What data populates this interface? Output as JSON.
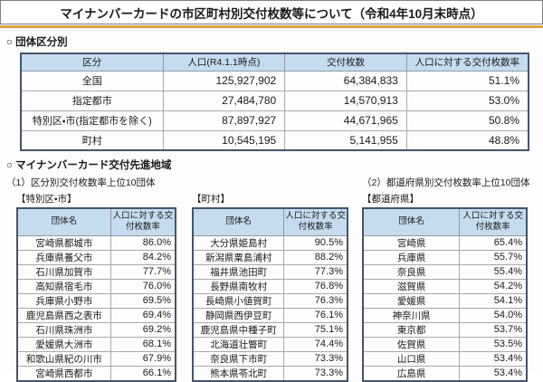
{
  "title": "マイナンバーカードの市区町村別交付枚数等について（令和4年10月末時点）",
  "colors": {
    "accent_line": "#d8a348",
    "table_header_bg": "#c5dcf0",
    "table_outer_border": "#44546a",
    "cell_border": "#a9a9a9"
  },
  "section1": {
    "heading": "○ 団体区分別",
    "table": {
      "headers": [
        "区分",
        "人口(R4.1.1時点)",
        "交付枚数",
        "人口に対する交付枚数率"
      ],
      "rows": [
        [
          "全国",
          "125,927,902",
          "64,384,833",
          "51.1%"
        ],
        [
          "指定都市",
          "27,484,780",
          "14,570,913",
          "53.0%"
        ],
        [
          "特別区・市(指定都市を除く)",
          "87,897,927",
          "44,671,965",
          "50.8%"
        ],
        [
          "町村",
          "10,545,195",
          "5,141,955",
          "48.8%"
        ]
      ]
    }
  },
  "section2": {
    "heading": "○ マイナンバーカード交付先進地域",
    "subheading_left": "（1）区分別交付枚数率上位10団体",
    "subheading_right": "（2）都道府県別交付枚数率上位10団体",
    "tables": [
      {
        "label": "【特別区・市】",
        "headers": [
          "団体名",
          "人口に対する交付枚数率"
        ],
        "rows": [
          [
            "宮崎県都城市",
            "86.0%"
          ],
          [
            "兵庫県養父市",
            "84.2%"
          ],
          [
            "石川県加賀市",
            "77.7%"
          ],
          [
            "高知県宿毛市",
            "76.0%"
          ],
          [
            "兵庫県小野市",
            "69.5%"
          ],
          [
            "鹿児島県西之表市",
            "69.4%"
          ],
          [
            "石川県珠洲市",
            "69.2%"
          ],
          [
            "愛媛県大洲市",
            "68.1%"
          ],
          [
            "和歌山県紀の川市",
            "67.9%"
          ],
          [
            "宮崎県西都市",
            "66.1%"
          ]
        ]
      },
      {
        "label": "【町村】",
        "headers": [
          "団体名",
          "人口に対する交付枚数率"
        ],
        "rows": [
          [
            "大分県姫島村",
            "90.5%"
          ],
          [
            "新潟県粟島浦村",
            "88.2%"
          ],
          [
            "福井県池田町",
            "77.3%"
          ],
          [
            "長野県南牧村",
            "76.8%"
          ],
          [
            "長崎県小値賀町",
            "76.3%"
          ],
          [
            "静岡県西伊豆町",
            "76.1%"
          ],
          [
            "鹿児島県中種子町",
            "75.1%"
          ],
          [
            "北海道壮瞥町",
            "74.4%"
          ],
          [
            "奈良県下市町",
            "73.3%"
          ],
          [
            "熊本県苓北町",
            "73.3%"
          ]
        ]
      },
      {
        "label": "【都道府県】",
        "headers": [
          "団体名",
          "人口に対する交付枚数率"
        ],
        "rows": [
          [
            "宮崎県",
            "65.4%"
          ],
          [
            "兵庫県",
            "55.7%"
          ],
          [
            "奈良県",
            "55.4%"
          ],
          [
            "滋賀県",
            "54.2%"
          ],
          [
            "愛媛県",
            "54.1%"
          ],
          [
            "神奈川県",
            "54.0%"
          ],
          [
            "東京都",
            "53.7%"
          ],
          [
            "佐賀県",
            "53.5%"
          ],
          [
            "山口県",
            "53.4%"
          ],
          [
            "広島県",
            "53.4%"
          ]
        ]
      }
    ]
  }
}
